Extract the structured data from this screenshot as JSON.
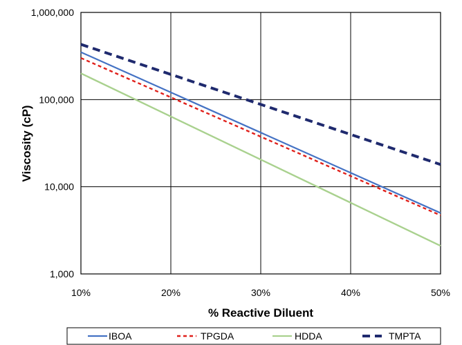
{
  "chart_data": {
    "type": "line",
    "xlabel": "% Reactive Diluent",
    "ylabel": "Viscosity (cP)",
    "x": [
      10,
      50
    ],
    "x_ticks": [
      10,
      20,
      30,
      40,
      50
    ],
    "x_tick_labels": [
      "10%",
      "20%",
      "30%",
      "40%",
      "50%"
    ],
    "xlim": [
      10,
      50
    ],
    "y_scale": "log",
    "ylim": [
      1000,
      1000000
    ],
    "y_ticks": [
      1000,
      10000,
      100000,
      1000000
    ],
    "y_tick_labels": [
      "1,000",
      "10,000",
      "100,000",
      "1,000,000"
    ],
    "grid": true,
    "legend_position": "bottom",
    "series": [
      {
        "name": "IBOA",
        "values": [
          350000,
          5000
        ],
        "color": "#4472c4",
        "style": "solid"
      },
      {
        "name": "TPGDA",
        "values": [
          300000,
          4700
        ],
        "color": "#e0201b",
        "style": "dotted"
      },
      {
        "name": "HDDA",
        "values": [
          200000,
          2100
        ],
        "color": "#a9d18e",
        "style": "solid"
      },
      {
        "name": "TMPTA",
        "values": [
          430000,
          18000
        ],
        "color": "#1f2a6e",
        "style": "dashed"
      }
    ]
  }
}
